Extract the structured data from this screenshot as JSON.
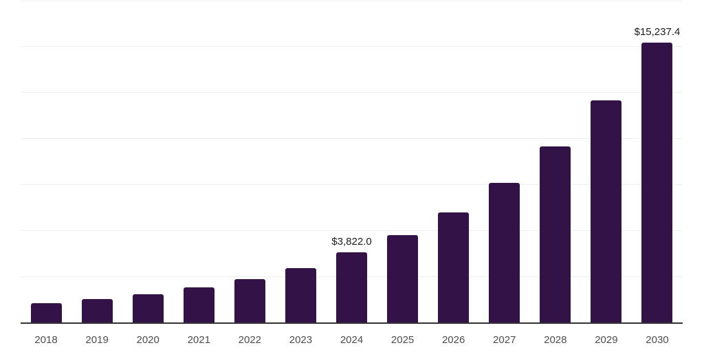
{
  "chart_data": {
    "type": "bar",
    "categories": [
      "2018",
      "2019",
      "2020",
      "2021",
      "2022",
      "2023",
      "2024",
      "2025",
      "2026",
      "2027",
      "2028",
      "2029",
      "2030"
    ],
    "values": [
      1050,
      1270,
      1540,
      1900,
      2350,
      2960,
      3822.0,
      4760,
      5990,
      7600,
      9580,
      12090,
      15237.4
    ],
    "value_labels": [
      "",
      "",
      "",
      "",
      "",
      "",
      "$3,822.0",
      "",
      "",
      "",
      "",
      "",
      "$15,237.4"
    ],
    "title": "",
    "xlabel": "",
    "ylabel": "",
    "ylim": [
      0,
      17500
    ],
    "gridline_step": 2500,
    "grid": true,
    "legend": false,
    "colors": {
      "bar": "#331347",
      "axis_line": "#333333",
      "gridline": "#f0f0f0",
      "value_label": "#1a1a1a",
      "tick_label": "#4d4d4d",
      "background": "#ffffff"
    }
  }
}
